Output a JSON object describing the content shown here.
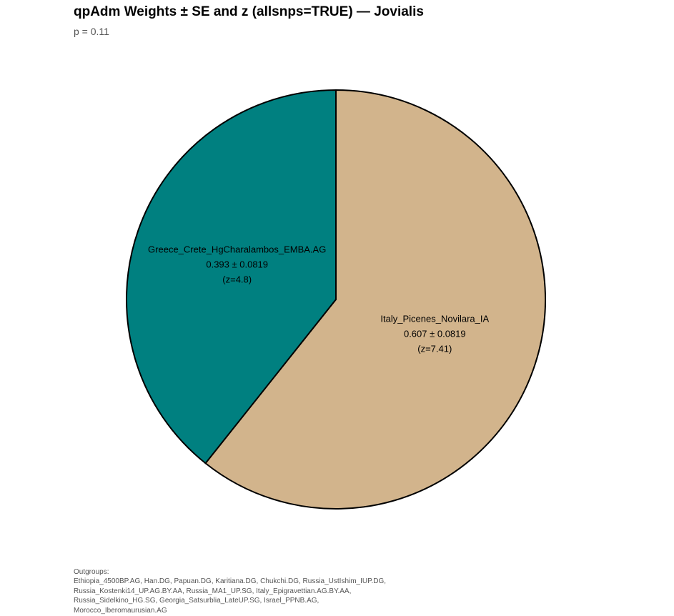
{
  "header": {
    "title": "qpAdm Weights ± SE and z (allsnps=TRUE) — Jovialis",
    "subtitle": "p = 0.11"
  },
  "caption": {
    "heading": "Outgroups:",
    "lines": [
      " Ethiopia_4500BP.AG, Han.DG, Papuan.DG, Karitiana.DG, Chukchi.DG, Russia_UstIshim_IUP.DG,",
      "Russia_Kostenki14_UP.AG.BY.AA, Russia_MA1_UP.SG, Italy_Epigravettian.AG.BY.AA,",
      "Russia_Sidelkino_HG.SG, Georgia_Satsurblia_LateUP.SG, Israel_PPNB.AG,",
      "Morocco_Iberomaurusian.AG"
    ]
  },
  "chart_data": {
    "type": "pie",
    "title": "qpAdm Weights ± SE and z (allsnps=TRUE) — Jovialis",
    "subtitle": "p = 0.11",
    "start": "12 o'clock",
    "direction": "clockwise",
    "slices": [
      {
        "name": "Italy_Picenes_Novilara_IA",
        "value": 0.607,
        "se": 0.0819,
        "z": 7.41,
        "value_label": "0.607 ± 0.0819",
        "z_label": "(z=7.41)",
        "color": "#D2B48C"
      },
      {
        "name": "Greece_Crete_HgCharalambos_EMBA.AG",
        "value": 0.393,
        "se": 0.0819,
        "z": 4.8,
        "value_label": "0.393 ± 0.0819",
        "z_label": "(z=4.8)",
        "color": "#008080"
      }
    ],
    "outline_color": "#000000"
  }
}
